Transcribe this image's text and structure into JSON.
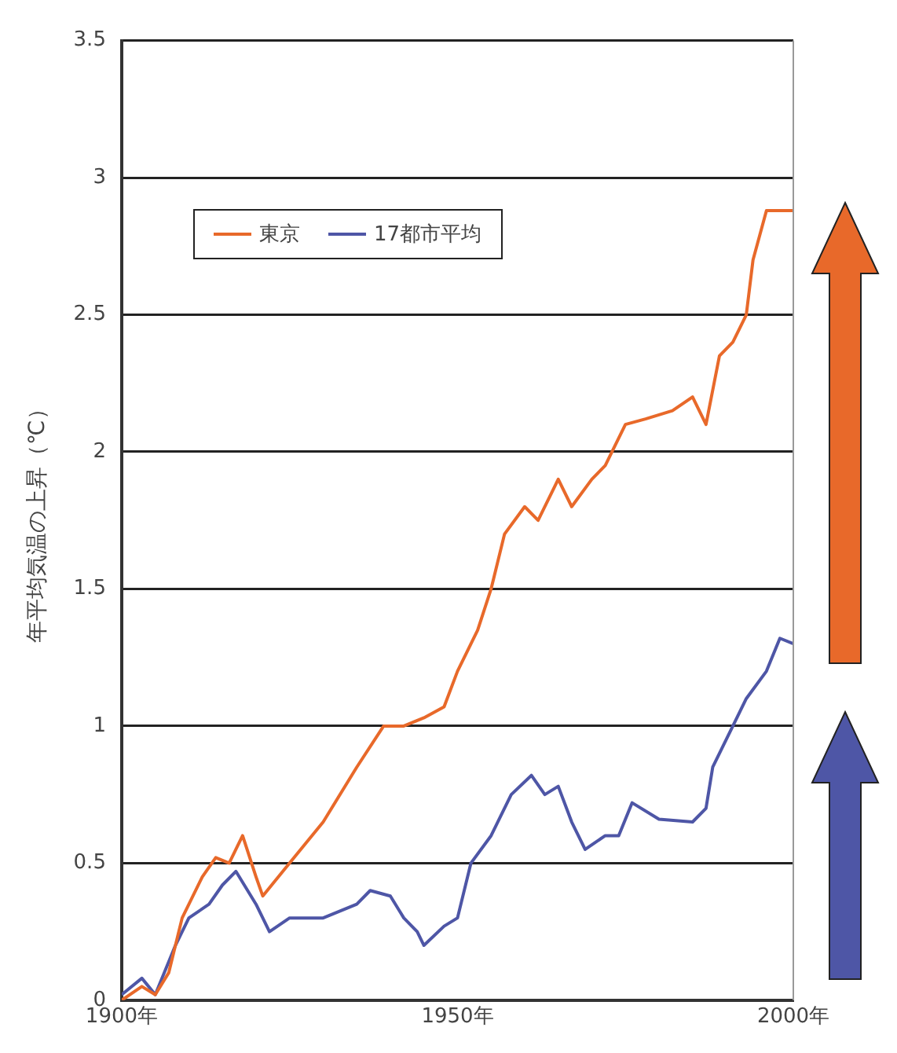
{
  "chart_data": {
    "type": "line",
    "ylabel": "年平均気温の上昇（℃）",
    "x": [
      1900,
      1903,
      1905,
      1907,
      1909,
      1912,
      1914,
      1916,
      1918,
      1920,
      1921,
      1925,
      1930,
      1935,
      1939,
      1942,
      1945,
      1948,
      1950,
      1953,
      1955,
      1957,
      1960,
      1962,
      1965,
      1967,
      1970,
      1972,
      1975,
      1978,
      1982,
      1985,
      1987,
      1989,
      1991,
      1993,
      1994,
      1996,
      2000
    ],
    "series": [
      {
        "name": "東京",
        "color": "#e8692a",
        "values": [
          0.0,
          0.05,
          0.02,
          0.1,
          0.3,
          0.45,
          0.52,
          0.5,
          0.6,
          0.45,
          0.38,
          0.5,
          0.65,
          0.85,
          1.0,
          1.0,
          1.03,
          1.07,
          1.2,
          1.35,
          1.5,
          1.7,
          1.8,
          1.75,
          1.9,
          1.8,
          1.9,
          1.95,
          2.1,
          2.12,
          2.15,
          2.2,
          2.1,
          2.35,
          2.4,
          2.5,
          2.7,
          2.88,
          2.88
        ]
      },
      {
        "name": "17都市平均",
        "color": "#4e56a6",
        "x": [
          1900,
          1903,
          1905,
          1908,
          1910,
          1913,
          1915,
          1917,
          1920,
          1921,
          1922,
          1925,
          1930,
          1935,
          1937,
          1940,
          1942,
          1944,
          1945,
          1948,
          1950,
          1952,
          1955,
          1958,
          1961,
          1963,
          1965,
          1967,
          1969,
          1972,
          1974,
          1976,
          1980,
          1985,
          1987,
          1988,
          1991,
          1993,
          1996,
          1998,
          2000
        ],
        "values": [
          0.02,
          0.08,
          0.02,
          0.2,
          0.3,
          0.35,
          0.42,
          0.47,
          0.35,
          0.3,
          0.25,
          0.3,
          0.3,
          0.35,
          0.4,
          0.38,
          0.3,
          0.25,
          0.2,
          0.27,
          0.3,
          0.5,
          0.6,
          0.75,
          0.82,
          0.75,
          0.78,
          0.65,
          0.55,
          0.6,
          0.6,
          0.72,
          0.66,
          0.65,
          0.7,
          0.85,
          1.0,
          1.1,
          1.2,
          1.32,
          1.3
        ]
      }
    ],
    "xlim": [
      1900,
      2000
    ],
    "xticks": [
      {
        "value": 1900,
        "label": "1900年"
      },
      {
        "value": 1950,
        "label": "1950年"
      },
      {
        "value": 2000,
        "label": "2000年"
      }
    ],
    "ylim": [
      0,
      3.5
    ],
    "yticks": [
      0,
      0.5,
      1,
      1.5,
      2,
      2.5,
      3,
      3.5
    ],
    "grid": "y",
    "legend": "top left",
    "marker": "none",
    "line_style": "solid"
  }
}
